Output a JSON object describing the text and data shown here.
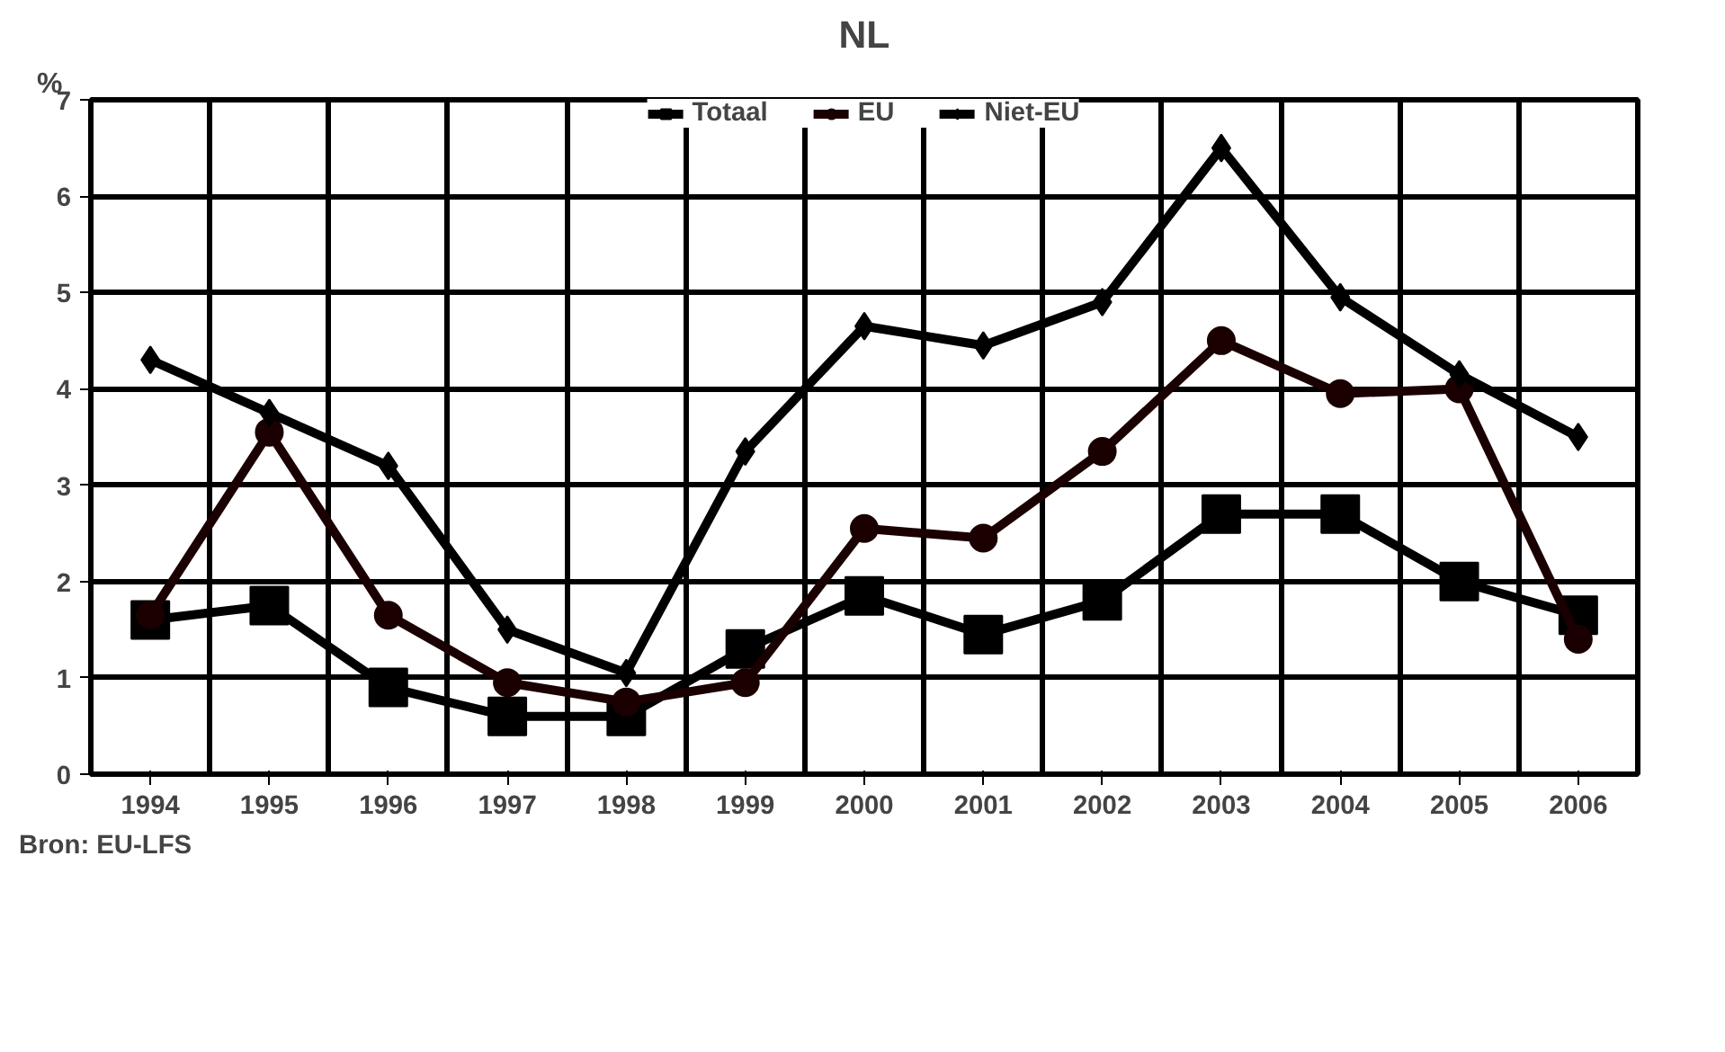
{
  "chart_data": {
    "type": "line",
    "title": "NL",
    "ylabel": "%",
    "categories": [
      "1994",
      "1995",
      "1996",
      "1997",
      "1998",
      "1999",
      "2000",
      "2001",
      "2002",
      "2003",
      "2004",
      "2005",
      "2006"
    ],
    "series": [
      {
        "name": "Totaal",
        "color": "#000000",
        "marker": "square",
        "values": [
          1.6,
          1.75,
          0.9,
          0.6,
          0.6,
          1.3,
          1.85,
          1.45,
          1.8,
          2.7,
          2.7,
          2.0,
          1.65
        ]
      },
      {
        "name": "EU",
        "color": "#1a0000",
        "marker": "circle",
        "values": [
          1.65,
          3.55,
          1.65,
          0.95,
          0.75,
          0.95,
          2.55,
          2.45,
          3.35,
          4.5,
          3.95,
          4.0,
          1.4
        ]
      },
      {
        "name": "Niet-EU",
        "color": "#000000",
        "marker": "diamond",
        "values": [
          4.3,
          3.75,
          3.2,
          1.5,
          1.05,
          3.35,
          4.65,
          4.45,
          4.9,
          6.5,
          4.95,
          4.15,
          3.5
        ]
      }
    ],
    "ylim": [
      0,
      7
    ],
    "yticks": [
      0,
      1,
      2,
      3,
      4,
      5,
      6,
      7
    ],
    "grid": true,
    "legend": "top",
    "annotations": [
      "Bron: EU-LFS"
    ]
  }
}
